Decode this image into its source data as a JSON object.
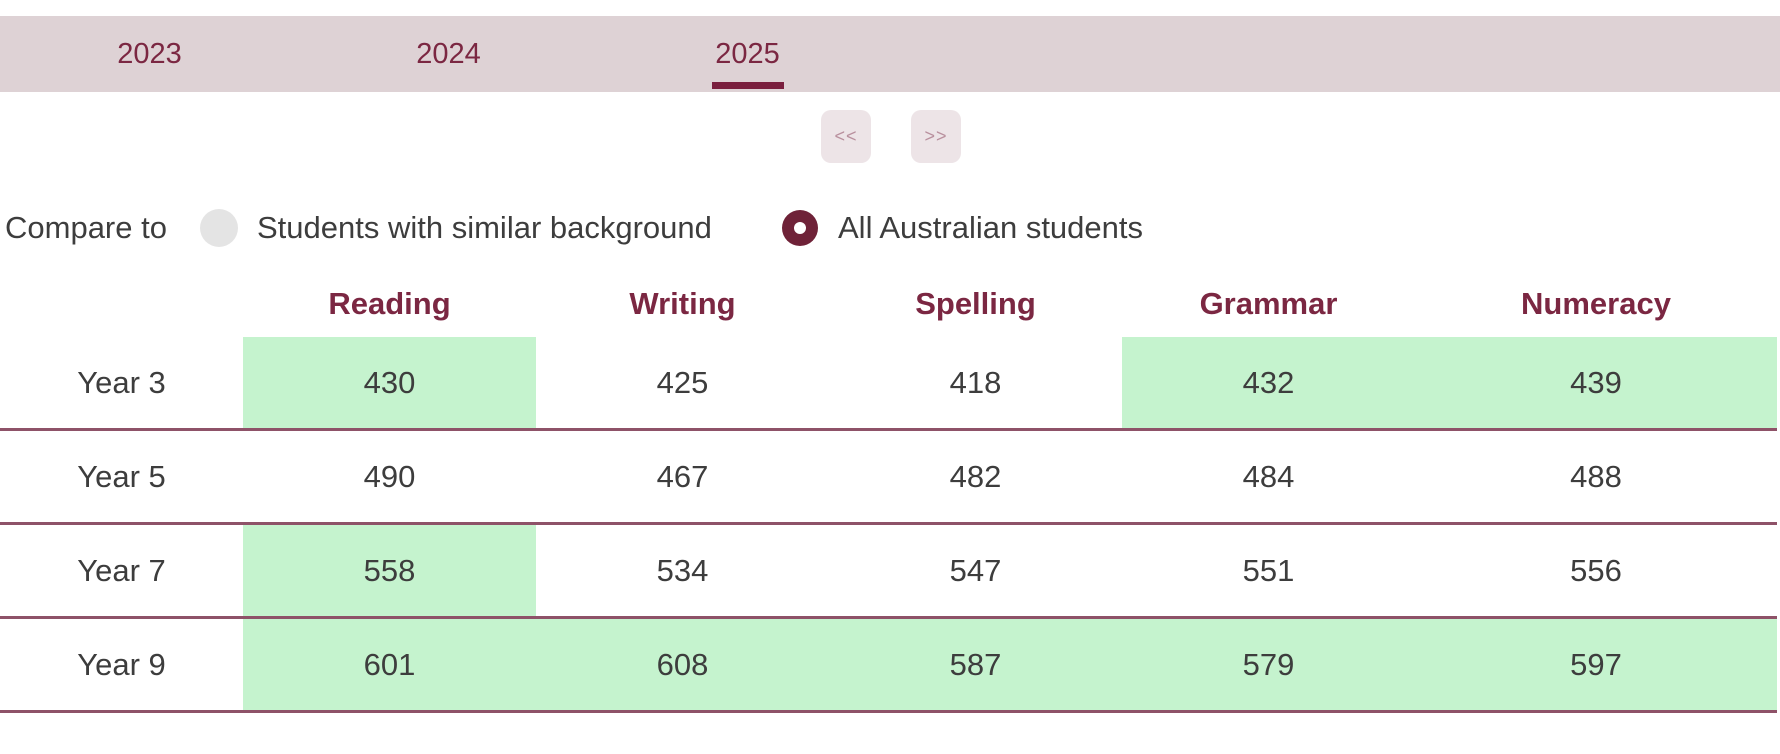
{
  "tabs": {
    "items": [
      {
        "label": "2023",
        "active": false
      },
      {
        "label": "2024",
        "active": false
      },
      {
        "label": "2025",
        "active": true
      }
    ]
  },
  "pager": {
    "prev_label": "<<",
    "next_label": ">>"
  },
  "compare": {
    "label": "Compare to",
    "options": [
      {
        "label": "Students with similar background",
        "selected": false
      },
      {
        "label": "All Australian students",
        "selected": true
      }
    ]
  },
  "table": {
    "columns": [
      "Reading",
      "Writing",
      "Spelling",
      "Grammar",
      "Numeracy"
    ],
    "rows": [
      {
        "label": "Year 3",
        "values": [
          430,
          425,
          418,
          432,
          439
        ],
        "highlighted": [
          true,
          false,
          false,
          true,
          true
        ]
      },
      {
        "label": "Year 5",
        "values": [
          490,
          467,
          482,
          484,
          488
        ],
        "highlighted": [
          false,
          false,
          false,
          false,
          false
        ]
      },
      {
        "label": "Year 7",
        "values": [
          558,
          534,
          547,
          551,
          556
        ],
        "highlighted": [
          true,
          false,
          false,
          false,
          false
        ]
      },
      {
        "label": "Year 9",
        "values": [
          601,
          608,
          587,
          579,
          597
        ],
        "highlighted": [
          true,
          true,
          true,
          true,
          true
        ]
      }
    ]
  },
  "colors": {
    "tabbar_background": "#ded2d5",
    "accent_maroon": "#7b2742",
    "active_underline": "#7a1f3e",
    "row_separator": "#8e5268",
    "highlight_green": "#c5f3ce",
    "pager_background": "#ede4e7",
    "radio_selected": "#6f2238",
    "radio_unselected": "#e4e4e4",
    "body_text": "#3d3d3d"
  }
}
